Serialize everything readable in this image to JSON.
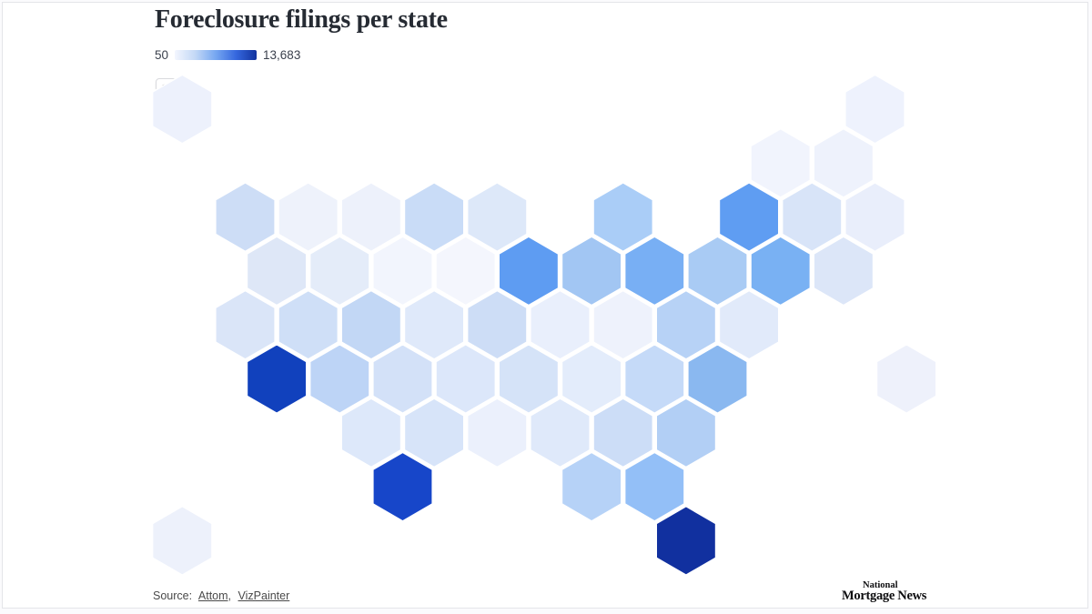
{
  "header": {
    "title": "Foreclosure filings per state"
  },
  "legend": {
    "min_label": "50",
    "max_label": "13,683",
    "gradient_stops": [
      "#f3f6fe",
      "#c3d8f6",
      "#76a7f1",
      "#3567de",
      "#12339f"
    ]
  },
  "footer": {
    "source_prefix": "Source:",
    "links": [
      {
        "label": "Attom"
      },
      {
        "label": "VizPainter"
      }
    ],
    "separator": ","
  },
  "branding": {
    "line1": "National",
    "line2": "Mortgage News"
  },
  "chart_data": {
    "type": "heatmap",
    "subtype": "us-hex-tile-map",
    "title": "Foreclosure filings per state",
    "legend": {
      "min": 50,
      "max": 13683
    },
    "note": "Hexagons are unlabeled in the image; each entry is grid position (half-column, row) plus rendered fill color encoding the value scale.",
    "hexes": [
      {
        "col": -2,
        "row": 0,
        "fill": "#edf1fc"
      },
      {
        "col": 20,
        "row": 0,
        "fill": "#eef2fd"
      },
      {
        "col": 17,
        "row": 1,
        "fill": "#f1f4fd"
      },
      {
        "col": 19,
        "row": 1,
        "fill": "#eef2fc"
      },
      {
        "col": 0,
        "row": 2,
        "fill": "#cdddf6"
      },
      {
        "col": 2,
        "row": 2,
        "fill": "#eef2fb"
      },
      {
        "col": 4,
        "row": 2,
        "fill": "#edf1fb"
      },
      {
        "col": 6,
        "row": 2,
        "fill": "#c9dcf7"
      },
      {
        "col": 8,
        "row": 2,
        "fill": "#dde8f9"
      },
      {
        "col": 12,
        "row": 2,
        "fill": "#aacdf7"
      },
      {
        "col": 16,
        "row": 2,
        "fill": "#5f9df2"
      },
      {
        "col": 18,
        "row": 2,
        "fill": "#d8e4f8"
      },
      {
        "col": 20,
        "row": 2,
        "fill": "#e9eefb"
      },
      {
        "col": 1,
        "row": 3,
        "fill": "#dee7f7"
      },
      {
        "col": 3,
        "row": 3,
        "fill": "#e4ecf9"
      },
      {
        "col": 5,
        "row": 3,
        "fill": "#f2f5fd"
      },
      {
        "col": 7,
        "row": 3,
        "fill": "#f4f6fd"
      },
      {
        "col": 9,
        "row": 3,
        "fill": "#5e9cf2"
      },
      {
        "col": 11,
        "row": 3,
        "fill": "#a2c6f3"
      },
      {
        "col": 13,
        "row": 3,
        "fill": "#78aff4"
      },
      {
        "col": 15,
        "row": 3,
        "fill": "#a9cbf4"
      },
      {
        "col": 17,
        "row": 3,
        "fill": "#79b1f3"
      },
      {
        "col": 19,
        "row": 3,
        "fill": "#dce6f8"
      },
      {
        "col": 0,
        "row": 4,
        "fill": "#dae5f8"
      },
      {
        "col": 2,
        "row": 4,
        "fill": "#cfdff7"
      },
      {
        "col": 4,
        "row": 4,
        "fill": "#c2d7f5"
      },
      {
        "col": 6,
        "row": 4,
        "fill": "#dfe9fa"
      },
      {
        "col": 8,
        "row": 4,
        "fill": "#cdddf6"
      },
      {
        "col": 10,
        "row": 4,
        "fill": "#e9effc"
      },
      {
        "col": 12,
        "row": 4,
        "fill": "#eef2fc"
      },
      {
        "col": 14,
        "row": 4,
        "fill": "#b7d2f6"
      },
      {
        "col": 16,
        "row": 4,
        "fill": "#e1eafa"
      },
      {
        "col": 1,
        "row": 5,
        "fill": "#1141bd"
      },
      {
        "col": 3,
        "row": 5,
        "fill": "#bdd4f6"
      },
      {
        "col": 5,
        "row": 5,
        "fill": "#d3e1f8"
      },
      {
        "col": 7,
        "row": 5,
        "fill": "#dce7fa"
      },
      {
        "col": 9,
        "row": 5,
        "fill": "#d5e3f8"
      },
      {
        "col": 11,
        "row": 5,
        "fill": "#e3ecfb"
      },
      {
        "col": 13,
        "row": 5,
        "fill": "#c5daf8"
      },
      {
        "col": 15,
        "row": 5,
        "fill": "#8ab8f0"
      },
      {
        "col": 21,
        "row": 5,
        "fill": "#eef1fb"
      },
      {
        "col": 4,
        "row": 6,
        "fill": "#dde8fa"
      },
      {
        "col": 6,
        "row": 6,
        "fill": "#d7e4f9"
      },
      {
        "col": 8,
        "row": 6,
        "fill": "#ebf0fc"
      },
      {
        "col": 10,
        "row": 6,
        "fill": "#dfe9fa"
      },
      {
        "col": 12,
        "row": 6,
        "fill": "#ccddf7"
      },
      {
        "col": 14,
        "row": 6,
        "fill": "#b2cff5"
      },
      {
        "col": 5,
        "row": 7,
        "fill": "#1746c9"
      },
      {
        "col": 11,
        "row": 7,
        "fill": "#b6d2f7"
      },
      {
        "col": 13,
        "row": 7,
        "fill": "#93bff7"
      },
      {
        "col": -2,
        "row": 8,
        "fill": "#edf1fb"
      },
      {
        "col": 14,
        "row": 8,
        "fill": "#11309f"
      }
    ]
  }
}
